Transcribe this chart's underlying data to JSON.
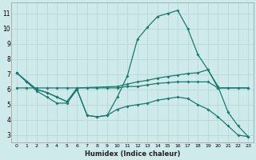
{
  "xlabel": "Humidex (Indice chaleur)",
  "background_color": "#ceeaea",
  "grid_color": "#b8d8d8",
  "line_color": "#1a7a6e",
  "xlim": [
    -0.5,
    23.5
  ],
  "ylim": [
    2.5,
    11.7
  ],
  "xticks": [
    0,
    1,
    2,
    3,
    4,
    5,
    6,
    7,
    8,
    9,
    10,
    11,
    12,
    13,
    14,
    15,
    16,
    17,
    18,
    19,
    20,
    21,
    22,
    23
  ],
  "yticks": [
    3,
    4,
    5,
    6,
    7,
    8,
    9,
    10,
    11
  ],
  "line1_x": [
    0,
    1,
    2,
    3,
    4,
    5,
    6,
    7,
    8,
    9,
    10,
    11,
    12,
    13,
    14,
    15,
    16,
    17,
    18,
    19,
    20,
    21,
    22,
    23
  ],
  "line1_y": [
    7.1,
    6.5,
    5.9,
    5.5,
    5.1,
    5.1,
    6.0,
    4.3,
    4.2,
    4.3,
    5.5,
    6.9,
    9.3,
    10.1,
    10.8,
    11.0,
    11.2,
    10.0,
    8.3,
    7.3,
    6.2,
    4.5,
    3.6,
    2.9
  ],
  "line2_x": [
    0,
    2,
    3,
    4,
    5,
    6,
    10,
    11,
    12,
    13,
    14,
    15,
    16,
    17,
    18,
    19,
    20,
    23
  ],
  "line2_y": [
    7.1,
    6.0,
    5.8,
    5.5,
    5.2,
    6.1,
    6.2,
    6.35,
    6.5,
    6.6,
    6.75,
    6.85,
    6.95,
    7.05,
    7.1,
    7.3,
    6.1,
    6.1
  ],
  "line3_x": [
    0,
    1,
    2,
    3,
    4,
    5,
    6,
    7,
    8,
    9,
    10,
    11,
    12,
    13,
    14,
    15,
    16,
    17,
    18,
    19,
    20,
    21,
    22,
    23
  ],
  "line3_y": [
    6.1,
    6.1,
    6.1,
    6.1,
    6.1,
    6.1,
    6.1,
    6.1,
    6.1,
    6.1,
    6.1,
    6.2,
    6.2,
    6.3,
    6.4,
    6.45,
    6.5,
    6.5,
    6.5,
    6.5,
    6.1,
    6.1,
    6.1,
    6.1
  ],
  "line4_x": [
    0,
    1,
    2,
    3,
    4,
    5,
    6,
    7,
    8,
    9,
    10,
    11,
    12,
    13,
    14,
    15,
    16,
    17,
    18,
    19,
    20,
    21,
    22,
    23
  ],
  "line4_y": [
    7.1,
    6.5,
    6.0,
    5.8,
    5.5,
    5.2,
    6.0,
    4.3,
    4.2,
    4.3,
    4.7,
    4.9,
    5.0,
    5.1,
    5.3,
    5.4,
    5.5,
    5.4,
    5.0,
    4.7,
    4.2,
    3.6,
    3.0,
    2.9
  ]
}
